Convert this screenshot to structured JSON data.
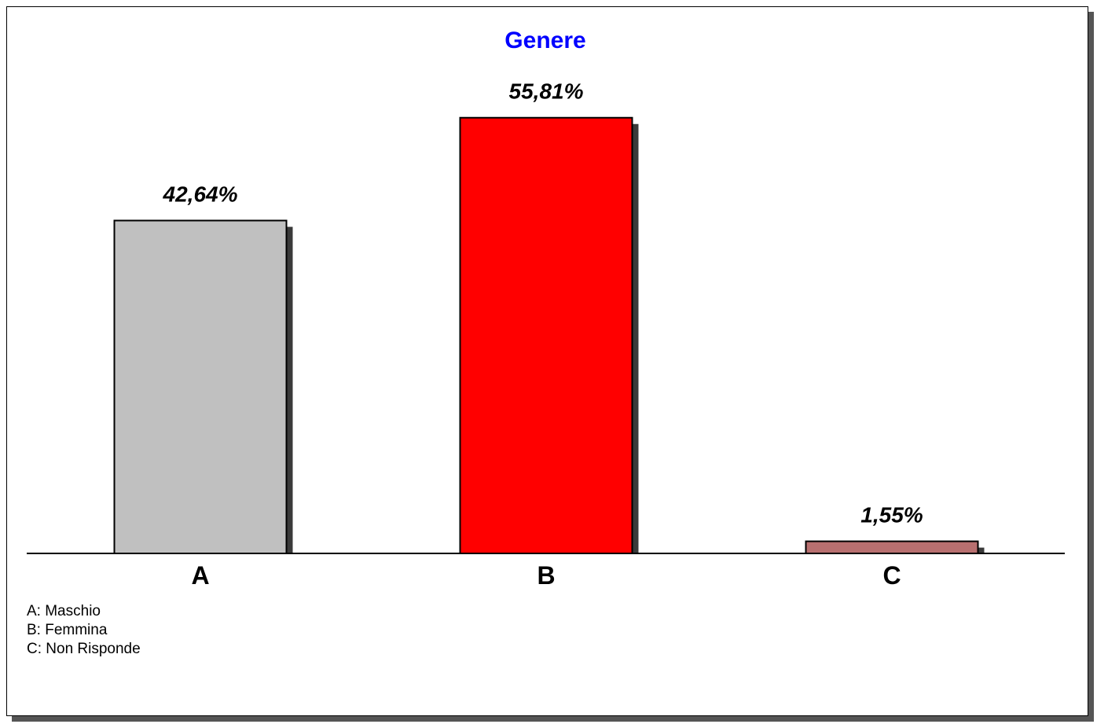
{
  "chart_data": {
    "type": "bar",
    "title": "Genere",
    "categories": [
      "A",
      "B",
      "C"
    ],
    "values": [
      42.64,
      55.81,
      1.55
    ],
    "value_labels": [
      "42,64%",
      "55,81%",
      "1,55%"
    ],
    "bar_colors": [
      "#c0c0c0",
      "#ff0000",
      "#b87070"
    ],
    "title_color": "#0000ff",
    "ylim": [
      0,
      58
    ],
    "grid": false,
    "legend_placement": "bottom-left",
    "legend": [
      "A: Maschio",
      "B: Femmina",
      "C: Non Risponde"
    ]
  }
}
